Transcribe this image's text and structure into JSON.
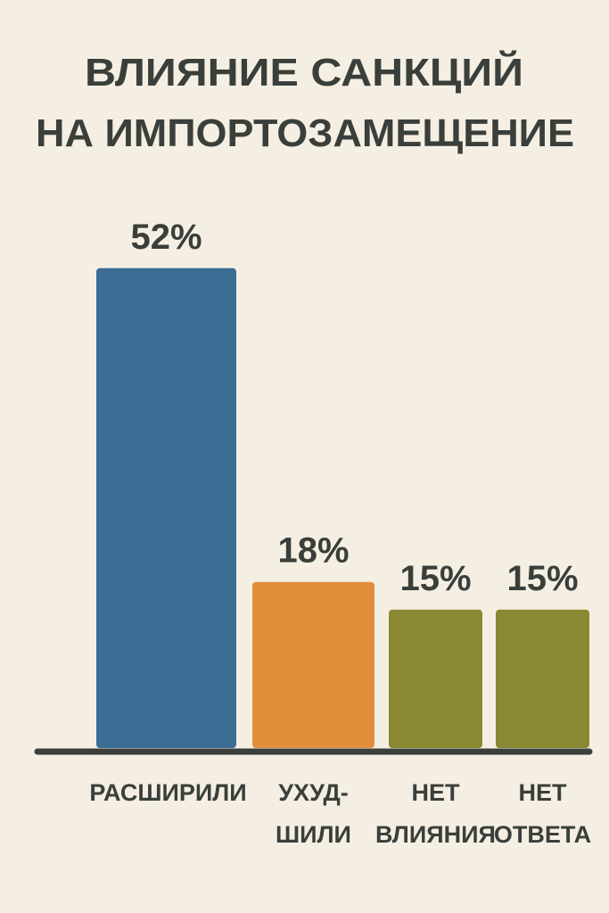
{
  "chart_data": {
    "type": "bar",
    "title": [
      "ВЛИЯНИЕ САНКЦИЙ",
      "НА ИМПОРТОЗАМЕЩЕНИЕ"
    ],
    "categories": [
      [
        "РАСШИРИЛИ"
      ],
      [
        "УХУД-",
        "ШИЛИ"
      ],
      [
        "НЕТ",
        "ВЛИЯНИЯ"
      ],
      [
        "НЕТ",
        "ОТВЕТА"
      ]
    ],
    "values": [
      52,
      18,
      15,
      15
    ],
    "value_labels": [
      "52%",
      "18%",
      "15%",
      "15%"
    ],
    "colors": [
      "#3c6d95",
      "#e28f3b",
      "#8a8833",
      "#8a8833"
    ]
  }
}
